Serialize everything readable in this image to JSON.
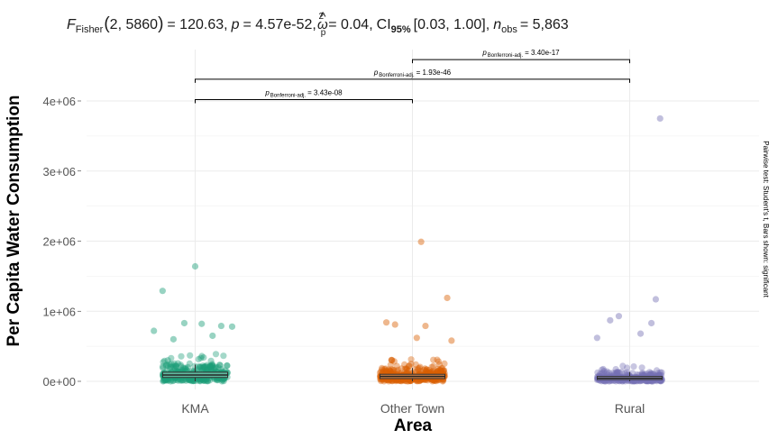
{
  "chart_data": {
    "type": "scatter",
    "subtitle": {
      "f_symbol": "F",
      "f_sub": "Fisher",
      "df": "2, 5860",
      "f_value": "= 120.63,",
      "p_symbol": "p",
      "p_value": "= 4.57e-52,",
      "effect_symbol": "ω",
      "effect_hat": "^",
      "effect_sup": "2",
      "effect_sub": "p",
      "effect_value": "= 0.04,",
      "ci_symbol": "CI",
      "ci_sub": "95%",
      "ci_value": "[0.03, 1.00],",
      "n_symbol": "n",
      "n_sub": "obs",
      "n_value": "= 5,863"
    },
    "xlabel": "Area",
    "ylabel": "Per Capita Water Consumption",
    "caption": "Pairwise test: Student's t, Bars shown: significant",
    "categories": [
      "KMA",
      "Other Town",
      "Rural"
    ],
    "colors": [
      "#1b9e77",
      "#d95f02",
      "#7570b3"
    ],
    "ylim": [
      -100000,
      4750000
    ],
    "yticks": [
      0,
      1000000,
      2000000,
      3000000,
      4000000
    ],
    "ytick_labels": [
      "0e+00",
      "1e+06",
      "2e+06",
      "3e+06",
      "4e+06"
    ],
    "grid": true,
    "boxplots": [
      {
        "category": "KMA",
        "q1": 55000,
        "median": 90000,
        "q3": 130000,
        "whisker_low": 0,
        "whisker_high": 240000
      },
      {
        "category": "Other Town",
        "q1": 40000,
        "median": 70000,
        "q3": 100000,
        "whisker_low": 0,
        "whisker_high": 190000
      },
      {
        "category": "Rural",
        "q1": 25000,
        "median": 45000,
        "q3": 70000,
        "whisker_low": 0,
        "whisker_high": 130000
      }
    ],
    "outliers": [
      {
        "category": "KMA",
        "jitter": 0.0,
        "y": 1640000
      },
      {
        "category": "KMA",
        "jitter": -0.15,
        "y": 1290000
      },
      {
        "category": "KMA",
        "jitter": -0.05,
        "y": 830000
      },
      {
        "category": "KMA",
        "jitter": 0.03,
        "y": 820000
      },
      {
        "category": "KMA",
        "jitter": 0.12,
        "y": 790000
      },
      {
        "category": "KMA",
        "jitter": 0.17,
        "y": 780000
      },
      {
        "category": "KMA",
        "jitter": -0.19,
        "y": 720000
      },
      {
        "category": "KMA",
        "jitter": 0.08,
        "y": 650000
      },
      {
        "category": "KMA",
        "jitter": -0.1,
        "y": 600000
      },
      {
        "category": "Other Town",
        "jitter": 0.04,
        "y": 1990000
      },
      {
        "category": "Other Town",
        "jitter": 0.16,
        "y": 1190000
      },
      {
        "category": "Other Town",
        "jitter": -0.12,
        "y": 840000
      },
      {
        "category": "Other Town",
        "jitter": -0.08,
        "y": 810000
      },
      {
        "category": "Other Town",
        "jitter": 0.06,
        "y": 790000
      },
      {
        "category": "Other Town",
        "jitter": 0.02,
        "y": 620000
      },
      {
        "category": "Other Town",
        "jitter": 0.18,
        "y": 580000
      },
      {
        "category": "Rural",
        "jitter": 0.14,
        "y": 3750000
      },
      {
        "category": "Rural",
        "jitter": 0.12,
        "y": 1170000
      },
      {
        "category": "Rural",
        "jitter": -0.05,
        "y": 930000
      },
      {
        "category": "Rural",
        "jitter": 0.1,
        "y": 830000
      },
      {
        "category": "Rural",
        "jitter": -0.09,
        "y": 870000
      },
      {
        "category": "Rural",
        "jitter": 0.05,
        "y": 680000
      },
      {
        "category": "Rural",
        "jitter": -0.15,
        "y": 620000
      }
    ],
    "comparisons": [
      {
        "group1": "KMA",
        "group2": "Other Town",
        "y": 4020000,
        "p_symbol": "p",
        "p_sub": "Bonferroni-adj.",
        "p_value": "= 3.43e-08"
      },
      {
        "group1": "KMA",
        "group2": "Rural",
        "y": 4310000,
        "p_symbol": "p",
        "p_sub": "Bonferroni-adj.",
        "p_value": "= 1.93e-46"
      },
      {
        "group1": "Other Town",
        "group2": "Rural",
        "y": 4590000,
        "p_symbol": "p",
        "p_sub": "Bonferroni-adj.",
        "p_value": "= 3.40e-17"
      }
    ]
  }
}
